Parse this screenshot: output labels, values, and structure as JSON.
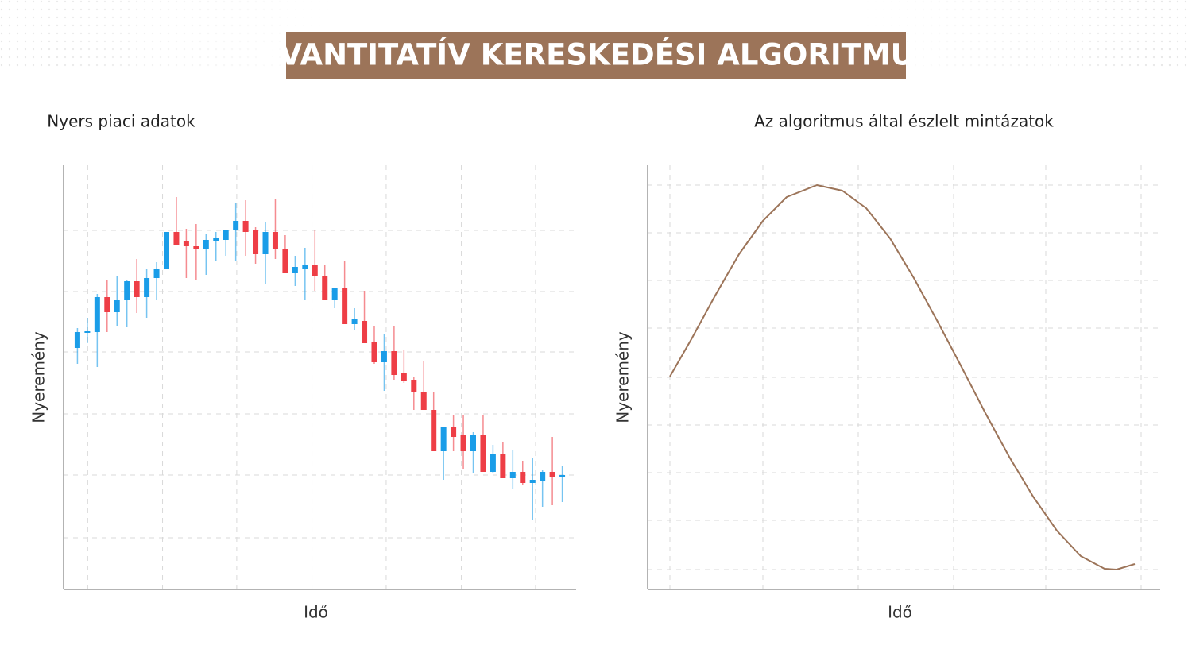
{
  "title": "KVANTITATÍV KERESKEDÉSI ALGORITMUS",
  "chart_data": [
    {
      "type": "candlestick",
      "title": "Nyers piaci adatok",
      "xlabel": "Idő",
      "ylabel": "Nyeremény",
      "x": [
        0,
        1,
        2,
        3,
        4,
        5,
        6,
        7,
        8,
        9,
        10,
        11,
        12,
        13,
        14,
        15,
        16,
        17,
        18,
        19,
        20,
        21,
        22,
        23,
        24,
        25,
        26,
        27,
        28,
        29,
        30,
        31,
        32,
        33,
        34,
        35,
        36,
        37,
        38,
        39,
        40,
        41,
        42,
        43,
        44,
        45,
        46,
        47,
        48,
        49
      ],
      "open": [
        304,
        323,
        324,
        368,
        349,
        364,
        388,
        368,
        392,
        404,
        450,
        438,
        432,
        428,
        439,
        440,
        452,
        464,
        452,
        422,
        450,
        428,
        398,
        404,
        408,
        394,
        364,
        380,
        334,
        338,
        312,
        286,
        300,
        272,
        264,
        248,
        226,
        174,
        204,
        194,
        174,
        194,
        148,
        170,
        140,
        148,
        134,
        136,
        148,
        142
      ],
      "high": [
        329,
        342,
        372,
        390,
        394,
        390,
        416,
        404,
        412,
        450,
        494,
        454,
        460,
        448,
        450,
        452,
        486,
        490,
        456,
        462,
        492,
        446,
        420,
        430,
        452,
        408,
        380,
        414,
        354,
        376,
        332,
        322,
        332,
        302,
        268,
        288,
        248,
        204,
        220,
        220,
        198,
        220,
        182,
        186,
        176,
        162,
        166,
        150,
        192,
        156
      ],
      "low": [
        284,
        310,
        280,
        324,
        332,
        330,
        348,
        342,
        364,
        404,
        434,
        392,
        390,
        396,
        414,
        420,
        414,
        420,
        410,
        384,
        416,
        398,
        382,
        364,
        376,
        364,
        354,
        334,
        326,
        310,
        284,
        250,
        264,
        260,
        226,
        226,
        174,
        138,
        174,
        152,
        146,
        148,
        146,
        140,
        126,
        132,
        88,
        104,
        106,
        110
      ],
      "close": [
        324,
        325,
        368,
        349,
        364,
        388,
        368,
        392,
        404,
        450,
        434,
        432,
        428,
        440,
        442,
        452,
        464,
        450,
        422,
        450,
        428,
        398,
        406,
        408,
        394,
        364,
        380,
        334,
        340,
        310,
        286,
        300,
        270,
        262,
        248,
        226,
        174,
        204,
        192,
        174,
        194,
        148,
        170,
        140,
        148,
        134,
        138,
        148,
        142,
        144
      ],
      "up_color": "#1a9de8",
      "down_color": "#ee3e46",
      "xlim": [
        -1.4,
        50.4
      ],
      "xticks": [
        1.04,
        8.6,
        16.1,
        23.7,
        31.2,
        38.8,
        46.3
      ],
      "ylim": [
        0,
        534
      ],
      "yticks": [
        65,
        144,
        221,
        299,
        375,
        452
      ],
      "grid": true
    },
    {
      "type": "line",
      "title": "Az algoritmus által észlelt mintázatok",
      "xlabel": "Idő",
      "ylabel": "Nyeremény",
      "x": [
        28,
        55,
        85,
        115,
        145,
        175,
        213,
        245,
        275,
        305,
        335,
        365,
        395,
        425,
        455,
        485,
        515,
        545,
        575,
        590,
        613
      ],
      "series": [
        {
          "color": "#9c7459",
          "values": [
            268,
            315,
            370,
            422,
            464,
            494,
            509,
            502,
            480,
            442,
            392,
            337,
            280,
            222,
            167,
            117,
            74,
            42,
            26,
            25,
            32
          ]
        }
      ],
      "xlim": [
        0,
        645
      ],
      "xticks": [
        28,
        145,
        265,
        385,
        501,
        621
      ],
      "ylim": [
        0,
        534
      ],
      "yticks": [
        25,
        87,
        147,
        207,
        267,
        329,
        389,
        449,
        509
      ],
      "grid": true
    }
  ]
}
